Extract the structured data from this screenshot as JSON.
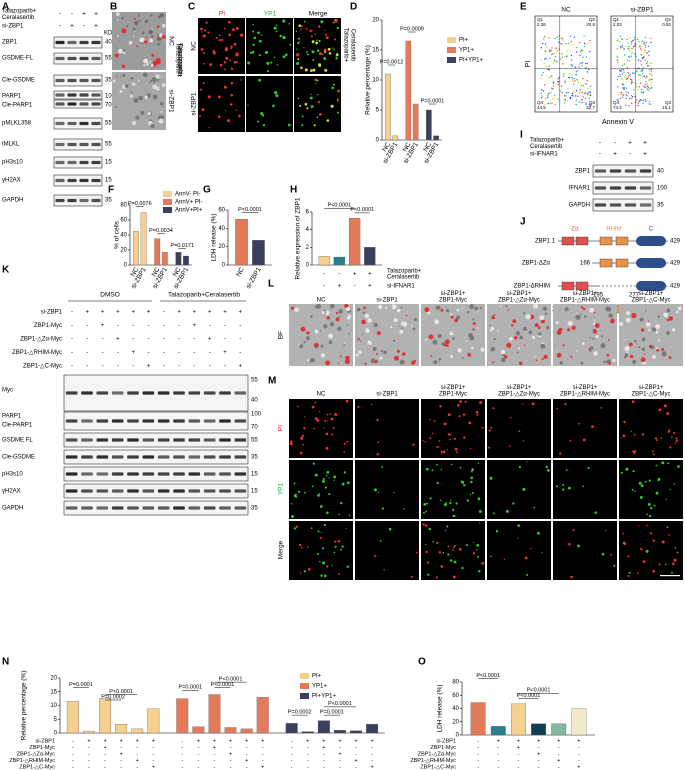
{
  "letters": [
    "A",
    "B",
    "C",
    "D",
    "E",
    "F",
    "G",
    "H",
    "I",
    "J",
    "K",
    "L",
    "M",
    "N",
    "O"
  ],
  "A": {
    "kda_title": "KDa",
    "header": [
      {
        "label": [
          "Talazoparib+",
          "Ceralasertib"
        ],
        "signs": [
          "-",
          "-",
          "+",
          "+"
        ]
      },
      {
        "label": [
          "si-ZBP1"
        ],
        "signs": [
          "-",
          "+",
          "-",
          "+"
        ]
      }
    ],
    "bands": [
      {
        "name": "ZBP1",
        "kda": 40
      },
      {
        "name": "GSDME-FL",
        "kda": 55
      },
      {
        "name": "Cle-GSDME",
        "kda": 35
      },
      {
        "name": "PARP1",
        "kda": 100
      },
      {
        "name": "Cle-PARP1",
        "kda": 70
      },
      {
        "name": "pMLKL358",
        "kda": 55
      },
      {
        "name": "tMLKL",
        "kda": 55
      },
      {
        "name": "pH3s10",
        "kda": 15
      },
      {
        "name": "γH2AX",
        "kda": 15
      },
      {
        "name": "GAPDH",
        "kda": 35
      }
    ]
  },
  "B": {
    "rows": [
      "NC",
      "si-ZBP1"
    ],
    "side": [
      "Talazoparib+",
      "Ceralasertib"
    ]
  },
  "C": {
    "columns": [
      "PI",
      "YP1",
      "Merge"
    ],
    "rows": [
      "NC",
      "si-ZBP1"
    ],
    "side": [
      "Talazoparib+",
      "Ceralasertib"
    ]
  },
  "D": {
    "type": "bar",
    "ylabel": "Relative percentage (%)",
    "ylim": [
      0,
      20
    ],
    "yticks": [
      0,
      5,
      10,
      15,
      20
    ],
    "categories": [
      "NC",
      "si-ZBP1"
    ],
    "series": [
      {
        "name": "PI+",
        "color": "#f6d08e",
        "values": [
          11,
          0.7
        ]
      },
      {
        "name": "YP1+",
        "color": "#e37b5b",
        "values": [
          16.5,
          6
        ]
      },
      {
        "name": "PI+YP1+",
        "color": "#3b3f5e",
        "values": [
          5,
          0.7
        ]
      }
    ],
    "p_values": [
      "P=0.0012",
      "P=0.0009",
      "P=0.0001"
    ]
  },
  "E": {
    "ylabel": "PI",
    "xlabel": "Annexin V",
    "samples": [
      {
        "title": "NC",
        "quadrants": [
          {
            "name": "Q1",
            "value": 2.26
          },
          {
            "name": "Q2",
            "value": 20.5
          },
          {
            "name": "Q4",
            "value": 44.5
          },
          {
            "name": "Q3",
            "value": 32.7
          }
        ]
      },
      {
        "title": "si-ZBP1",
        "quadrants": [
          {
            "name": "Q1",
            "value": 2.02
          },
          {
            "name": "Q2",
            "value": 0.52
          },
          {
            "name": "Q4",
            "value": 74.4
          },
          {
            "name": "Q3",
            "value": 15.1
          }
        ]
      }
    ]
  },
  "F": {
    "type": "bar",
    "ylabel": "% of cells",
    "ylim": [
      0,
      80
    ],
    "yticks": [
      0,
      20,
      40,
      60,
      80
    ],
    "categories": [
      "NC",
      "si-ZBP1"
    ],
    "series": [
      {
        "name": "AnnV- PI-",
        "color": "#f6d08e",
        "values": [
          45,
          70
        ]
      },
      {
        "name": "AnnV+ PI-",
        "color": "#e37b5b",
        "values": [
          35,
          17
        ]
      },
      {
        "name": "AnnV+PI+",
        "color": "#3b3f5e",
        "values": [
          17,
          12
        ]
      }
    ],
    "p_values": [
      "P=0.0076",
      "P=0.0034",
      "P=0.0171"
    ]
  },
  "G": {
    "type": "bar",
    "ylabel": "LDH release (%)",
    "ylim": [
      0,
      60
    ],
    "yticks": [
      0,
      20,
      40,
      60
    ],
    "categories": [
      "NC",
      "si-ZBP1"
    ],
    "values": [
      50,
      27
    ],
    "colors": [
      "#e37b5b",
      "#3b3f5e"
    ],
    "p_values": [
      "P<0.0001"
    ]
  },
  "H": {
    "type": "bar",
    "ylabel": "Relative expression of ZBP1",
    "ylim": [
      0,
      6
    ],
    "yticks": [
      0,
      2,
      4,
      6
    ],
    "values": [
      1,
      0.9,
      5.3,
      2
    ],
    "colors": [
      "#f6d08e",
      "#2a7f8f",
      "#e37b5b",
      "#3b3f5e"
    ],
    "sign_rows": [
      {
        "label": [
          "Talazoparib+",
          "Ceralasertib"
        ],
        "signs": [
          "-",
          "-",
          "+",
          "+"
        ]
      },
      {
        "label": "si-IFNAR1",
        "signs": [
          "-",
          "+",
          "-",
          "+"
        ]
      }
    ],
    "p_values": [
      "P<0.0001",
      "P<0.0001"
    ]
  },
  "I": {
    "header": [
      {
        "label": [
          "Talazoparib+",
          "Ceralasertib"
        ],
        "signs": [
          "-",
          "-",
          "+",
          "+"
        ]
      },
      {
        "label": [
          "si-IFNAR1"
        ],
        "signs": [
          "-",
          "+",
          "-",
          "+"
        ]
      }
    ],
    "bands": [
      {
        "name": "ZBP1",
        "kda": 40
      },
      {
        "name": "IFNAR1",
        "kda": 100
      },
      {
        "name": "GAPDH",
        "kda": 35
      }
    ]
  },
  "J": {
    "domains": [
      "Zα",
      "RHIM",
      "C"
    ],
    "rows": [
      {
        "name": "ZBP1",
        "nums": [
          1,
          429
        ]
      },
      {
        "name": "ZBP1-ΔZα",
        "nums": [
          166,
          429
        ]
      },
      {
        "name": "ZBP1-ΔRHIM",
        "nums": [
          195,
          277,
          429
        ]
      },
      {
        "name": "ZBP1-ΔC",
        "nums": [
          1,
          320
        ]
      }
    ]
  },
  "K": {
    "groups": [
      "DMSO",
      "Talazoparib+Ceralasertib"
    ],
    "sign_rows": [
      {
        "label": "si-ZBP1",
        "signs": [
          "-",
          "+",
          "+",
          "+",
          "+",
          "+",
          "-",
          "+",
          "+",
          "+",
          "+",
          "+"
        ]
      },
      {
        "label": "ZBP1-Myc",
        "signs": [
          "-",
          "-",
          "+",
          "-",
          "-",
          "-",
          "-",
          "-",
          "+",
          "-",
          "-",
          "-"
        ]
      },
      {
        "label": "ZBP1-△Zα-Myc",
        "signs": [
          "-",
          "-",
          "-",
          "+",
          "-",
          "-",
          "-",
          "-",
          "-",
          "+",
          "-",
          "-"
        ]
      },
      {
        "label": "ZBP1-△RHIM-Myc",
        "signs": [
          "-",
          "-",
          "-",
          "-",
          "+",
          "-",
          "-",
          "-",
          "-",
          "-",
          "+",
          "-"
        ]
      },
      {
        "label": "ZBP1-△C-Myc",
        "signs": [
          "-",
          "-",
          "-",
          "-",
          "-",
          "+",
          "-",
          "-",
          "-",
          "-",
          "-",
          "+"
        ]
      }
    ],
    "bands": [
      "Myc",
      "PARP1",
      "Cle-PARP1",
      "GSDME FL",
      "Cle-GSDME",
      "pH3s10",
      "γH2AX",
      "GAPDH"
    ],
    "kda": [
      55,
      40,
      100,
      70,
      55,
      35,
      15,
      15,
      35
    ]
  },
  "L": {
    "side": "BF",
    "columns": [
      [
        "NC"
      ],
      [
        "si-ZBP1"
      ],
      [
        "si-ZBP1+",
        "ZBP1-Myc"
      ],
      [
        "si-ZBP1+",
        "ZBP1-△Zα-Myc"
      ],
      [
        "si-ZBP1+",
        "ZBP1-△RHIM-Myc"
      ],
      [
        "si-ZBP1+",
        "ZBP1-△C-Myc"
      ]
    ]
  },
  "M": {
    "rows": [
      "PI",
      "YP1",
      "Merge"
    ],
    "columns": [
      [
        "NC"
      ],
      [
        "si-ZBP1"
      ],
      [
        "si-ZBP1+",
        "ZBP1-Myc"
      ],
      [
        "si-ZBP1+",
        "ZBP1-△Zα-Myc"
      ],
      [
        "si-ZBP1+",
        "ZBP1-△RHIM-Myc"
      ],
      [
        "si-ZBP1+",
        "ZBP1-△C-Myc"
      ]
    ]
  },
  "N": {
    "type": "bar",
    "ylabel": "Relative percentage (%)",
    "ylim": [
      0,
      20
    ],
    "yticks": [
      0,
      5,
      10,
      15,
      20
    ],
    "series": [
      {
        "name": "PI+",
        "color": "#f6d08e",
        "values": [
          11.5,
          0.7,
          12.5,
          3.2,
          1.5,
          8.8
        ]
      },
      {
        "name": "YP1+",
        "color": "#e37b5b",
        "values": [
          12.5,
          2.3,
          14,
          2,
          1.5,
          13
        ]
      },
      {
        "name": "PI+YP1+",
        "color": "#3b3f5e",
        "values": [
          3.5,
          0.5,
          4.5,
          1,
          0.8,
          3.2
        ]
      }
    ],
    "p_values": [
      "P=0.0001",
      "P<0.0001",
      "P=0.0002",
      "P=0.0001",
      "P<0.0001",
      "P<0.0001",
      "P=0.0002",
      "P<0.0001",
      "P=0.0001"
    ],
    "sign_rows": [
      {
        "label": "si-ZBP1",
        "signs": [
          "-",
          "+",
          "+",
          "+",
          "+",
          "+",
          "-",
          "+",
          "+",
          "+",
          "+",
          "+",
          "-",
          "+",
          "+",
          "+",
          "+",
          "+"
        ]
      },
      {
        "label": "ZBP1-Myc",
        "signs": [
          "-",
          "-",
          "+",
          "-",
          "-",
          "-",
          "-",
          "-",
          "+",
          "-",
          "-",
          "-",
          "-",
          "-",
          "+",
          "-",
          "-",
          "-"
        ]
      },
      {
        "label": "ZBP1-△Zα-Myc",
        "signs": [
          "-",
          "-",
          "-",
          "+",
          "-",
          "-",
          "-",
          "-",
          "-",
          "+",
          "-",
          "-",
          "-",
          "-",
          "-",
          "+",
          "-",
          "-"
        ]
      },
      {
        "label": "ZBP1-△RHIM-Myc",
        "signs": [
          "-",
          "-",
          "-",
          "-",
          "+",
          "-",
          "-",
          "-",
          "-",
          "-",
          "+",
          "-",
          "-",
          "-",
          "-",
          "-",
          "+",
          "-"
        ]
      },
      {
        "label": "ZBP1-△C-Myc",
        "signs": [
          "-",
          "-",
          "-",
          "-",
          "-",
          "+",
          "-",
          "-",
          "-",
          "-",
          "-",
          "+",
          "-",
          "-",
          "-",
          "-",
          "-",
          "+"
        ]
      }
    ]
  },
  "O": {
    "type": "bar",
    "ylabel": "LDH release (%)",
    "ylim": [
      0,
      80
    ],
    "yticks": [
      0,
      20,
      40,
      60,
      80
    ],
    "values": [
      49,
      13,
      47,
      17,
      17,
      40
    ],
    "colors": [
      "#e37b5b",
      "#2a7f8f",
      "#f6d08e",
      "#0f3f55",
      "#84b89f",
      "#f5e9cc"
    ],
    "p_values": [
      "P<0.0001",
      "P<0.0001",
      "P<0.0001"
    ],
    "sign_rows": [
      {
        "label": "si-ZBP1",
        "signs": [
          "-",
          "+",
          "+",
          "+",
          "+",
          "+"
        ]
      },
      {
        "label": "ZBP1-Myc",
        "signs": [
          "-",
          "-",
          "+",
          "-",
          "-",
          "-"
        ]
      },
      {
        "label": "ZBP1-△Zα-Myc",
        "signs": [
          "-",
          "-",
          "-",
          "+",
          "-",
          "-"
        ]
      },
      {
        "label": "ZBP1-△RHIM-Myc",
        "signs": [
          "-",
          "-",
          "-",
          "-",
          "+",
          "-"
        ]
      },
      {
        "label": "ZBP1-△C-Myc",
        "signs": [
          "-",
          "-",
          "-",
          "-",
          "-",
          "+"
        ]
      }
    ]
  }
}
